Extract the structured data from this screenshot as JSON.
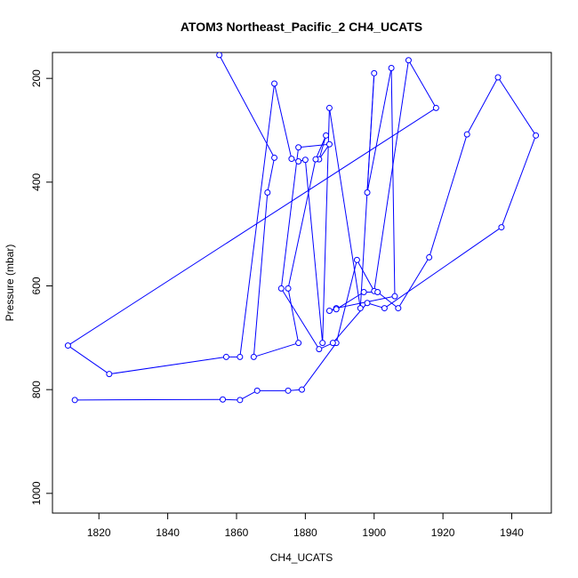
{
  "chart_data": {
    "type": "line",
    "title": "ATOM3 Northeast_Pacific_2 CH4_UCATS",
    "xlabel": "CH4_UCATS",
    "ylabel": "Pressure (mbar)",
    "xlim": [
      1806.5,
      1951.5
    ],
    "ylim": [
      1038,
      150
    ],
    "y_reversed": true,
    "x_ticks": [
      1820,
      1840,
      1860,
      1880,
      1900,
      1920,
      1940
    ],
    "y_ticks": [
      200,
      400,
      600,
      800,
      1000
    ],
    "line_color": "#0000ff",
    "marker": "open-circle",
    "grid": false,
    "series": [
      {
        "x": [
          1813,
          1856,
          1861,
          1866,
          1875,
          1879,
          1889,
          1895,
          1900,
          1910,
          1918,
          1811,
          1823,
          1857,
          1861,
          1871,
          1876,
          1878,
          1880,
          1885,
          1887,
          1896,
          1900,
          1898,
          1905,
          1906,
          1889,
          1887,
          1889,
          1897,
          1901,
          1907,
          1916,
          1927,
          1936,
          1947,
          1937,
          1903,
          1898,
          1888,
          1884,
          1873,
          1878,
          1887,
          1884,
          1886,
          1883,
          1875,
          1878,
          1865,
          1869,
          1871,
          1855
        ],
        "y": [
          820,
          819,
          820,
          802,
          802,
          800,
          710,
          550,
          610,
          165,
          257,
          715,
          770,
          737,
          737,
          210,
          355,
          360,
          357,
          710,
          257,
          643,
          190,
          420,
          180,
          620,
          643,
          648,
          645,
          612,
          612,
          643,
          545,
          308,
          198,
          310,
          487,
          643,
          633,
          710,
          722,
          605,
          333,
          327,
          356,
          310,
          356,
          605,
          710,
          737,
          420,
          353,
          155
        ]
      }
    ]
  }
}
